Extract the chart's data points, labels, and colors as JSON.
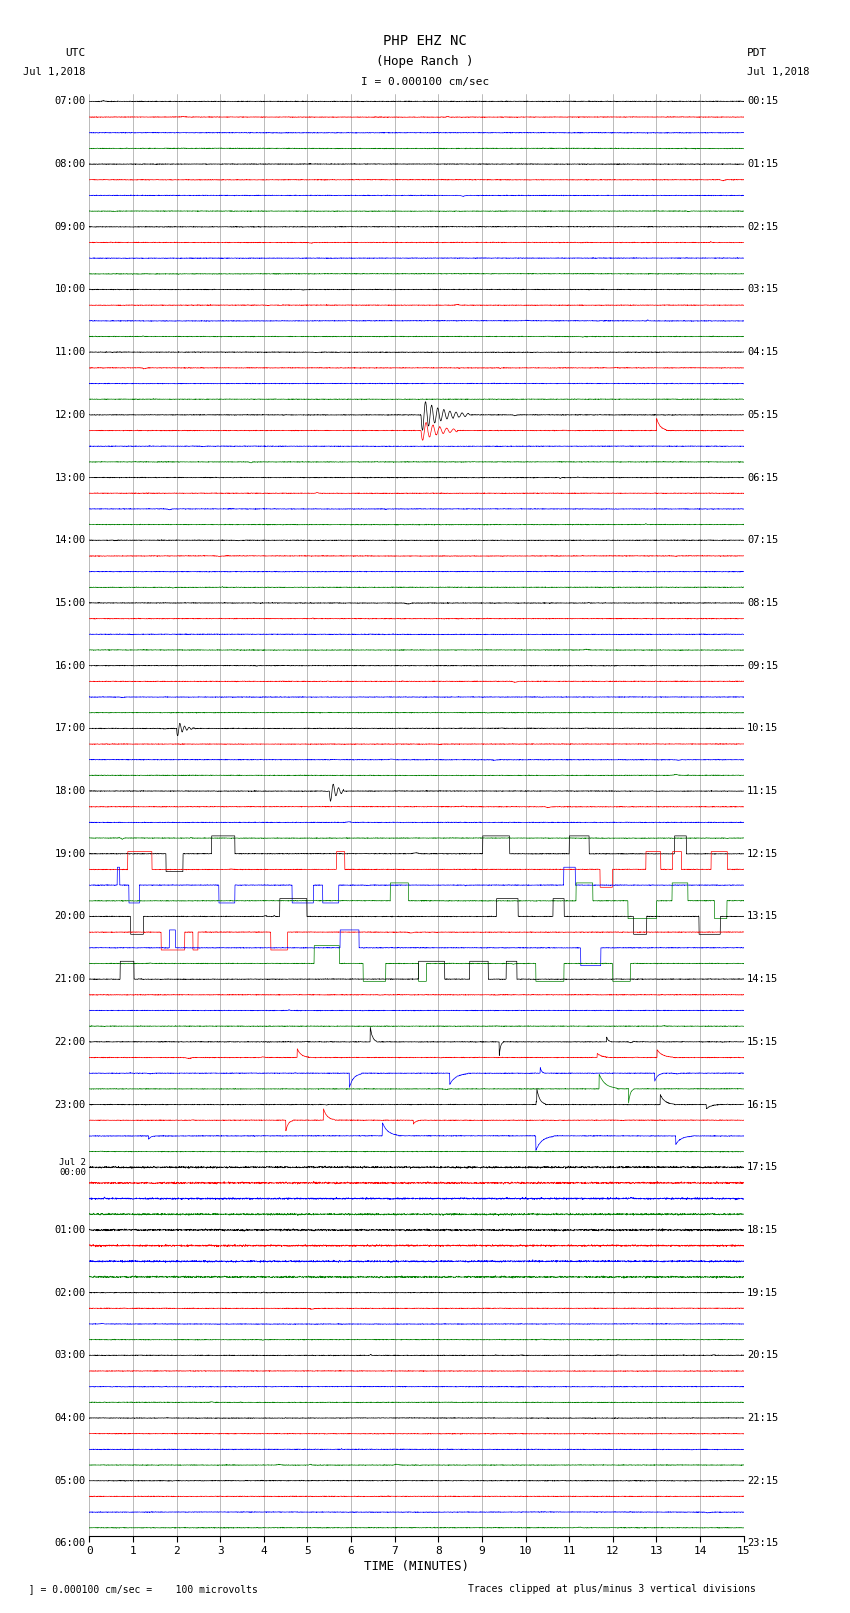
{
  "title_line1": "PHP EHZ NC",
  "title_line2": "(Hope Ranch )",
  "scale_label": "I = 0.000100 cm/sec",
  "utc_label": "UTC",
  "utc_date": "Jul 1,2018",
  "pdt_label": "PDT",
  "pdt_date": "Jul 1,2018",
  "xlabel": "TIME (MINUTES)",
  "footer_left": "  ] = 0.000100 cm/sec =    100 microvolts",
  "footer_right": "Traces clipped at plus/minus 3 vertical divisions",
  "xlim": [
    0,
    15
  ],
  "utc_hour_labels": [
    "07:00",
    "08:00",
    "09:00",
    "10:00",
    "11:00",
    "12:00",
    "13:00",
    "14:00",
    "15:00",
    "16:00",
    "17:00",
    "18:00",
    "19:00",
    "20:00",
    "21:00",
    "22:00",
    "23:00",
    "Jul 2\n00:00",
    "01:00",
    "02:00",
    "03:00",
    "04:00",
    "05:00",
    "06:00"
  ],
  "pdt_hour_labels": [
    "00:15",
    "01:15",
    "02:15",
    "03:15",
    "04:15",
    "05:15",
    "06:15",
    "07:15",
    "08:15",
    "09:15",
    "10:15",
    "11:15",
    "12:15",
    "13:15",
    "14:15",
    "15:15",
    "16:15",
    "17:15",
    "18:15",
    "19:15",
    "20:15",
    "21:15",
    "22:15",
    "23:15"
  ],
  "n_hours": 23,
  "traces_per_hour": 4,
  "trace_color_cycle": [
    "black",
    "red",
    "blue",
    "green"
  ],
  "background_color": "white",
  "fig_width": 8.5,
  "fig_height": 16.13,
  "dpi": 100,
  "noise_std": 0.025,
  "amp_scale": 0.38,
  "n_points": 2700,
  "vline_color": "#888888",
  "vline_lw": 0.4
}
